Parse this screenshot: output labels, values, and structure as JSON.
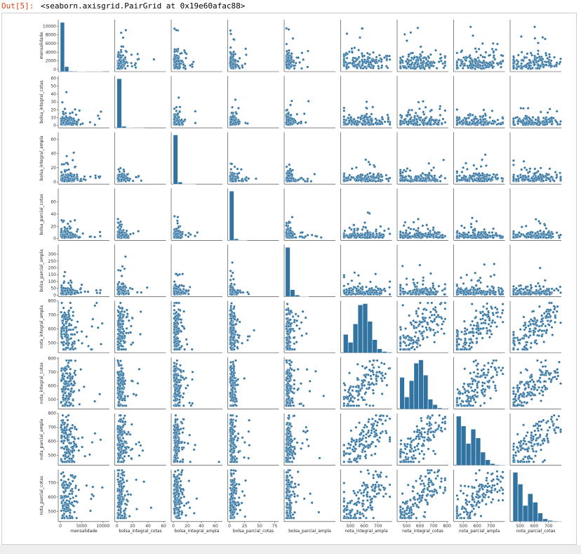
{
  "cell": {
    "prompt": "Out[5]:",
    "repr": "<seaborn.axisgrid.PairGrid at 0x19e60afac88>"
  },
  "colors": {
    "marker": "#3274a1",
    "marker_edge": "#ffffff",
    "prompt": "#d84315"
  },
  "chart_data": {
    "type": "scatter",
    "kind": "pairplot",
    "variables": [
      "mensalidade",
      "bolsa_integral_cotas",
      "bolsa_integral_ampla",
      "bolsa_parcial_cotas",
      "bolsa_parcial_ampla",
      "nota_integral_ampla",
      "nota_integral_cotas",
      "nota_parcial_ampla",
      "nota_parcial_cotas"
    ],
    "axes": [
      {
        "name": "mensalidade",
        "lim": [
          -500,
          11500
        ],
        "xticks": [
          0,
          5000,
          10000
        ],
        "yticks": [
          0,
          2000,
          4000,
          6000,
          8000,
          10000
        ]
      },
      {
        "name": "bolsa_integral_cotas",
        "lim": [
          -3,
          63
        ],
        "xticks": [
          0,
          20,
          40,
          60
        ],
        "yticks": [
          0,
          10,
          20,
          30,
          40,
          50,
          60
        ]
      },
      {
        "name": "bolsa_integral_ampla",
        "lim": [
          -3,
          70
        ],
        "xticks": [
          0,
          20,
          40,
          60
        ],
        "yticks": [
          0,
          20,
          40,
          60
        ]
      },
      {
        "name": "bolsa_parcial_cotas",
        "lim": [
          -3,
          82
        ],
        "xticks": [
          0,
          25,
          50,
          75
        ],
        "yticks": [
          0,
          20,
          40,
          60
        ]
      },
      {
        "name": "bolsa_parcial_ampla",
        "lim": [
          -10,
          370
        ],
        "xticks": [],
        "yticks": [
          0,
          50,
          100,
          150,
          200,
          250,
          300
        ]
      },
      {
        "name": "nota_integral_ampla",
        "lim": [
          430,
          800
        ],
        "xticks": [
          500,
          600,
          700
        ],
        "yticks": [
          500,
          600,
          700,
          800
        ]
      },
      {
        "name": "nota_integral_cotas",
        "lim": [
          430,
          810
        ],
        "xticks": [
          400,
          500,
          600,
          700,
          800
        ],
        "yticks": [
          500,
          600,
          700,
          800
        ]
      },
      {
        "name": "nota_parcial_ampla",
        "lim": [
          430,
          800
        ],
        "xticks": [
          500,
          600,
          700
        ],
        "yticks": [
          500,
          600,
          700,
          800
        ]
      },
      {
        "name": "nota_parcial_cotas",
        "lim": [
          430,
          790
        ],
        "xticks": [
          500,
          600,
          700
        ],
        "yticks": [
          500,
          600,
          700
        ]
      }
    ],
    "histograms": [
      {
        "variable": "mensalidade",
        "bins": [
          0,
          1000,
          2000,
          3000,
          4000,
          5000,
          6000,
          7000,
          8000,
          9000,
          10000
        ],
        "counts": [
          100,
          10,
          1.2,
          0.8,
          0.5,
          0.3,
          0.2,
          0.2,
          0.2,
          0.2
        ]
      },
      {
        "variable": "bolsa_integral_cotas",
        "bins": [
          0,
          6,
          12,
          18,
          24,
          30,
          36,
          42,
          48,
          54,
          60
        ],
        "counts": [
          100,
          3,
          0.5,
          0.2,
          0.1,
          0.1,
          0,
          0,
          0,
          0
        ]
      },
      {
        "variable": "bolsa_integral_ampla",
        "bins": [
          0,
          6.5,
          13,
          19.5,
          26,
          32.5,
          39,
          45.5,
          52,
          58.5,
          65
        ],
        "counts": [
          100,
          4,
          0.5,
          0.2,
          0.1,
          0,
          0,
          0,
          0,
          0
        ]
      },
      {
        "variable": "bolsa_parcial_cotas",
        "bins": [
          0,
          7.5,
          15,
          22.5,
          30,
          37.5,
          45,
          52.5,
          60,
          67.5,
          75
        ],
        "counts": [
          100,
          3,
          0.5,
          0.2,
          0,
          0,
          0,
          0,
          0,
          0
        ]
      },
      {
        "variable": "bolsa_parcial_ampla",
        "bins": [
          0,
          35,
          70,
          105,
          140,
          175,
          210,
          245,
          280,
          315,
          350
        ],
        "counts": [
          100,
          14,
          3,
          0.5,
          0.2,
          0,
          0,
          0,
          0,
          0
        ]
      },
      {
        "variable": "nota_integral_ampla",
        "bins": [
          450,
          485,
          520,
          555,
          590,
          625,
          660,
          695,
          730,
          765,
          800
        ],
        "counts": [
          28,
          16,
          44,
          73,
          75,
          48,
          20,
          6,
          2,
          1
        ]
      },
      {
        "variable": "nota_integral_cotas",
        "bins": [
          450,
          485,
          520,
          555,
          590,
          625,
          660,
          695,
          730,
          765,
          800
        ],
        "counts": [
          58,
          22,
          52,
          84,
          90,
          62,
          18,
          8,
          2,
          1
        ]
      },
      {
        "variable": "nota_parcial_ampla",
        "bins": [
          450,
          485,
          520,
          555,
          590,
          625,
          660,
          695,
          730,
          765,
          800
        ],
        "counts": [
          90,
          72,
          40,
          66,
          50,
          24,
          10,
          3,
          1,
          0.5
        ]
      },
      {
        "variable": "nota_parcial_cotas",
        "bins": [
          450,
          485,
          520,
          555,
          590,
          625,
          660,
          695,
          730,
          765,
          790
        ],
        "counts": [
          92,
          70,
          30,
          52,
          36,
          16,
          5,
          2,
          1,
          0.5
        ]
      }
    ],
    "grid": false,
    "legend": "none"
  }
}
